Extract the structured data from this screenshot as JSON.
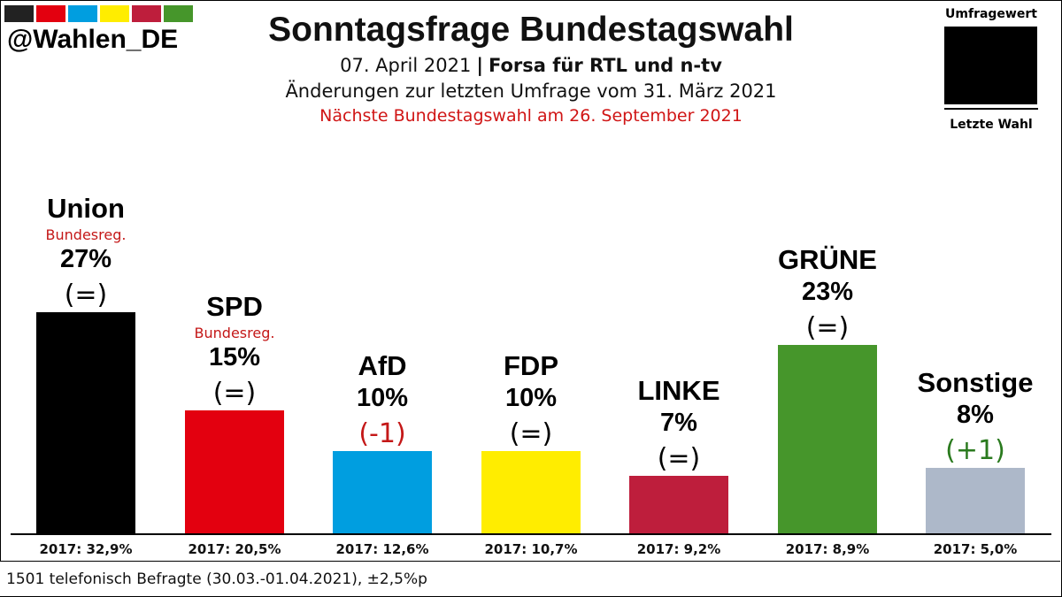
{
  "brand": {
    "handle": "@Wahlen_DE",
    "swatches": [
      "#222222",
      "#e3000f",
      "#009ee0",
      "#ffed00",
      "#be1e3c",
      "#46962b"
    ]
  },
  "header": {
    "title": "Sonntagsfrage Bundestagswahl",
    "date": "07. April 2021",
    "separator": "|",
    "pollster": "Forsa für RTL und n-tv",
    "changes_note": "Änderungen zur letzten Umfrage vom 31. März 2021",
    "next_election": "Nächste Bundestagswahl am 26. September 2021"
  },
  "legend": {
    "top_label": "Umfragewert",
    "bottom_label": "Letzte Wahl"
  },
  "chart_data": {
    "type": "bar",
    "title": "Sonntagsfrage Bundestagswahl",
    "unit": "%",
    "ylim": [
      0,
      30
    ],
    "categories": [
      "Union",
      "SPD",
      "AfD",
      "FDP",
      "LINKE",
      "GRÜNE",
      "Sonstige"
    ],
    "values": [
      27,
      15,
      10,
      10,
      7,
      23,
      8
    ],
    "value_labels": [
      "27%",
      "15%",
      "10%",
      "10%",
      "7%",
      "23%",
      "8%"
    ],
    "changes": [
      "(=)",
      "(=)",
      "(-1)",
      "(=)",
      "(=)",
      "(=)",
      "(+1)"
    ],
    "change_colors": [
      "#000000",
      "#000000",
      "#c41818",
      "#000000",
      "#000000",
      "#000000",
      "#2a7a1e"
    ],
    "government_tags": [
      "Bundesreg.",
      "Bundesreg.",
      "",
      "",
      "",
      "",
      ""
    ],
    "colors": [
      "#000000",
      "#e3000f",
      "#009ee0",
      "#ffed00",
      "#be1e3c",
      "#46962b",
      "#adb8c9"
    ],
    "previous_election_labels": [
      "2017: 32,9%",
      "2017: 20,5%",
      "2017: 12,6%",
      "2017: 10,7%",
      "2017: 9,2%",
      "2017: 8,9%",
      "2017: 5,0%"
    ],
    "previous_election_values": [
      32.9,
      20.5,
      12.6,
      10.7,
      9.2,
      8.9,
      5.0
    ]
  },
  "footer": {
    "note": "1501 telefonisch Befragte (30.03.-01.04.2021), ±2,5%p"
  }
}
